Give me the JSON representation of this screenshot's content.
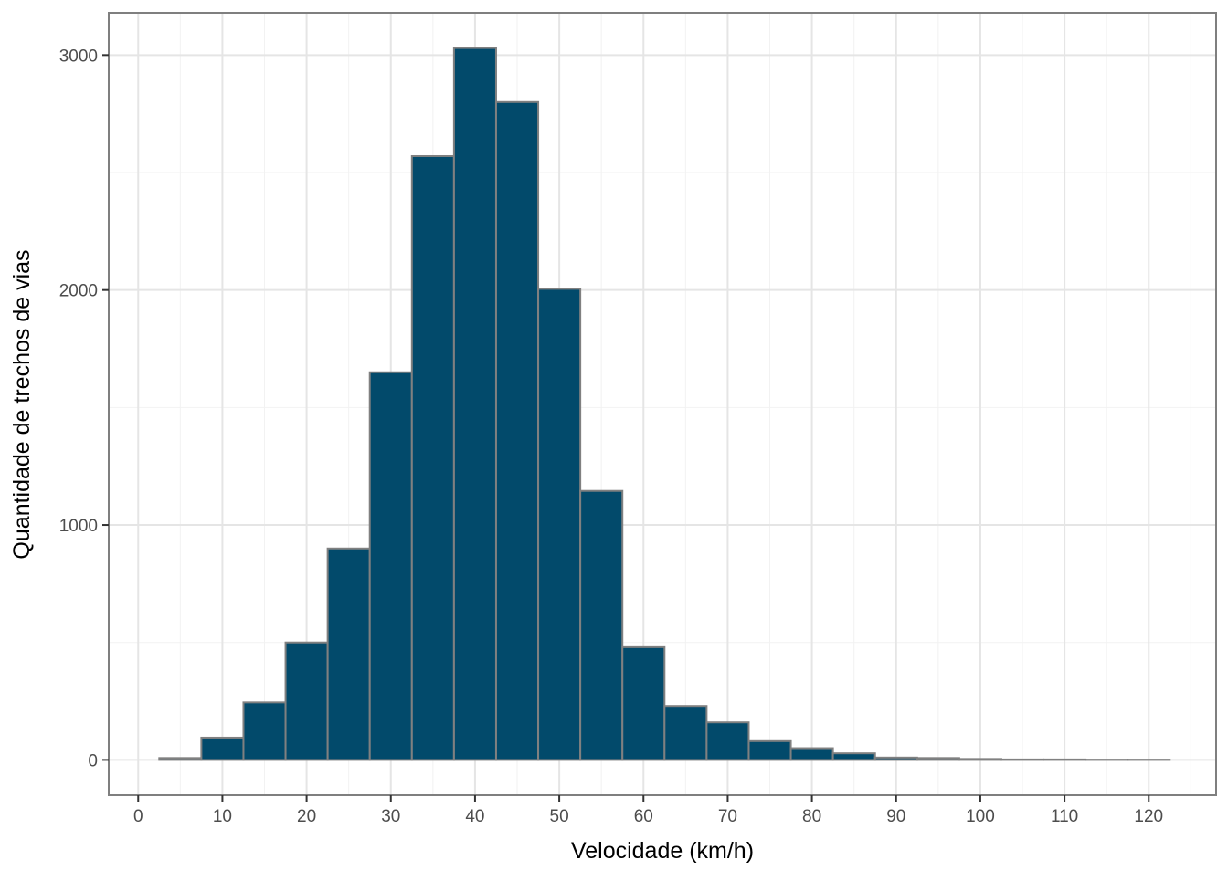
{
  "chart_data": {
    "type": "bar",
    "subtype": "histogram",
    "title": "",
    "xlabel": "Velocidade (km/h)",
    "ylabel": "Quantidade de trechos de vias",
    "bin_width": 5,
    "bins": [
      {
        "center": 5,
        "count": 8
      },
      {
        "center": 10,
        "count": 95
      },
      {
        "center": 15,
        "count": 245
      },
      {
        "center": 20,
        "count": 500
      },
      {
        "center": 25,
        "count": 900
      },
      {
        "center": 30,
        "count": 1650
      },
      {
        "center": 35,
        "count": 2570
      },
      {
        "center": 40,
        "count": 3030
      },
      {
        "center": 45,
        "count": 2800
      },
      {
        "center": 50,
        "count": 2005
      },
      {
        "center": 55,
        "count": 1145
      },
      {
        "center": 60,
        "count": 480
      },
      {
        "center": 65,
        "count": 230
      },
      {
        "center": 70,
        "count": 160
      },
      {
        "center": 75,
        "count": 80
      },
      {
        "center": 80,
        "count": 50
      },
      {
        "center": 85,
        "count": 28
      },
      {
        "center": 90,
        "count": 10
      },
      {
        "center": 95,
        "count": 8
      },
      {
        "center": 100,
        "count": 4
      },
      {
        "center": 105,
        "count": 2
      },
      {
        "center": 110,
        "count": 2
      },
      {
        "center": 115,
        "count": 1
      },
      {
        "center": 120,
        "count": 1
      }
    ],
    "xlim": [
      -3.5,
      128
    ],
    "ylim": [
      -150,
      3180
    ],
    "x_ticks": [
      0,
      10,
      20,
      30,
      40,
      50,
      60,
      70,
      80,
      90,
      100,
      110,
      120
    ],
    "x_tick_labels": [
      "0",
      "10",
      "20",
      "30",
      "40",
      "50",
      "60",
      "70",
      "80",
      "90",
      "100",
      "110",
      "120"
    ],
    "y_ticks": [
      0,
      1000,
      2000,
      3000
    ],
    "y_tick_labels": [
      "0",
      "1000",
      "2000",
      "3000"
    ],
    "x_minor_ticks": [
      5,
      15,
      25,
      35,
      45,
      55,
      65,
      75,
      85,
      95,
      105,
      115,
      125
    ],
    "y_minor_ticks": [
      500,
      1500,
      2500
    ],
    "grid": true,
    "theme": "bw",
    "colors": {
      "bar_fill": "#024a6b",
      "bar_outline": "#808080",
      "panel_border": "#7f7f7f",
      "grid_major": "#e5e5e5",
      "grid_minor": "#f2f2f2",
      "tick_label": "#4d4d4d",
      "axis_title": "#000000"
    }
  }
}
